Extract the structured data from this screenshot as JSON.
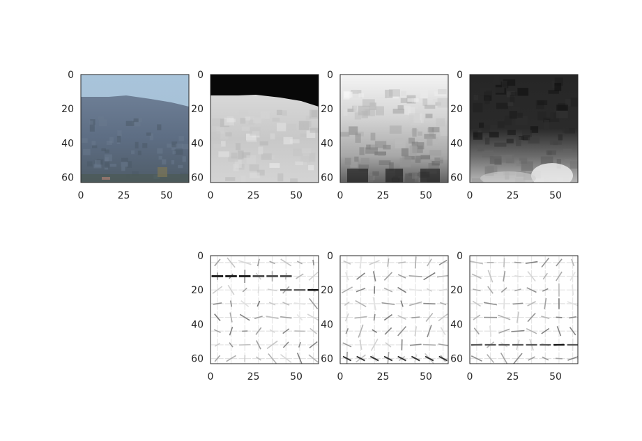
{
  "chart_data": [
    {
      "type": "heatmap",
      "panel": "rgb-image",
      "cmap": "rgb",
      "xticks": [
        "0",
        "25",
        "50"
      ],
      "yticks": [
        "0",
        "20",
        "40",
        "60"
      ],
      "xlim": [
        0,
        63
      ],
      "ylim": [
        63,
        0
      ]
    },
    {
      "type": "heatmap",
      "panel": "channel-1",
      "cmap": "gray",
      "xticks": [
        "0",
        "25",
        "50"
      ],
      "yticks": [
        "0",
        "20",
        "40",
        "60"
      ],
      "xlim": [
        0,
        63
      ],
      "ylim": [
        63,
        0
      ]
    },
    {
      "type": "heatmap",
      "panel": "channel-2",
      "cmap": "gray",
      "xticks": [
        "0",
        "25",
        "50"
      ],
      "yticks": [
        "0",
        "20",
        "40",
        "60"
      ],
      "xlim": [
        0,
        63
      ],
      "ylim": [
        63,
        0
      ]
    },
    {
      "type": "heatmap",
      "panel": "channel-3",
      "cmap": "gray",
      "xticks": [
        "0",
        "25",
        "50"
      ],
      "yticks": [
        "0",
        "20",
        "40",
        "60"
      ],
      "xlim": [
        0,
        63
      ],
      "ylim": [
        63,
        0
      ]
    },
    {
      "type": "heatmap",
      "panel": "hog-1",
      "cmap": "gray_r",
      "xticks": [
        "0",
        "25",
        "50"
      ],
      "yticks": [
        "0",
        "20",
        "40",
        "60"
      ],
      "xlim": [
        0,
        63
      ],
      "ylim": [
        63,
        0
      ]
    },
    {
      "type": "heatmap",
      "panel": "hog-2",
      "cmap": "gray_r",
      "xticks": [
        "0",
        "25",
        "50"
      ],
      "yticks": [
        "0",
        "20",
        "40",
        "60"
      ],
      "xlim": [
        0,
        63
      ],
      "ylim": [
        63,
        0
      ]
    },
    {
      "type": "heatmap",
      "panel": "hog-3",
      "cmap": "gray_r",
      "xticks": [
        "0",
        "25",
        "50"
      ],
      "yticks": [
        "0",
        "20",
        "40",
        "60"
      ],
      "xlim": [
        0,
        63
      ],
      "ylim": [
        63,
        0
      ]
    }
  ]
}
